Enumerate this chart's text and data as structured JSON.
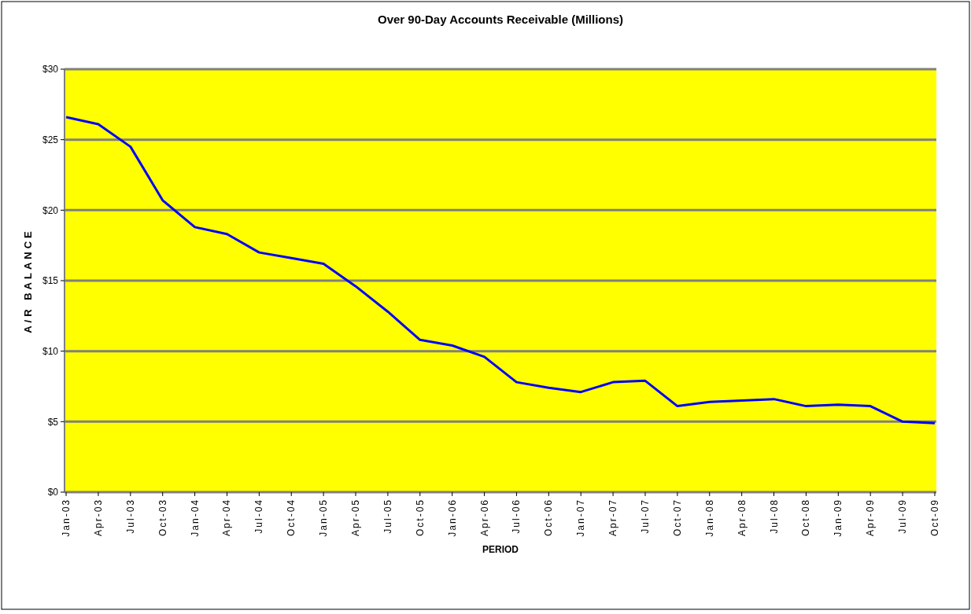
{
  "chart_data": {
    "type": "line",
    "title": "Over 90-Day Accounts Receivable (Millions)",
    "xlabel": "PERIOD",
    "ylabel": "A/R BALANCE",
    "categories": [
      "Jan-03",
      "Apr-03",
      "Jul-03",
      "Oct-03",
      "Jan-04",
      "Apr-04",
      "Jul-04",
      "Oct-04",
      "Jan-05",
      "Apr-05",
      "Jul-05",
      "Oct-05",
      "Jan-06",
      "Apr-06",
      "Jul-06",
      "Oct-06",
      "Jan-07",
      "Apr-07",
      "Jul-07",
      "Oct-07",
      "Jan-08",
      "Apr-08",
      "Jul-08",
      "Oct-08",
      "Jan-09",
      "Apr-09",
      "Jul-09",
      "Oct-09"
    ],
    "series": [
      {
        "color": "#0000ff",
        "values": [
          26.6,
          26.1,
          24.5,
          20.7,
          18.8,
          18.3,
          17.0,
          16.6,
          16.2,
          14.6,
          12.8,
          10.8,
          10.4,
          9.6,
          7.8,
          7.4,
          7.1,
          7.8,
          7.9,
          6.1,
          6.4,
          6.5,
          6.6,
          6.1,
          6.2,
          6.1,
          5.0,
          4.9
        ]
      }
    ],
    "ylim": [
      0,
      30
    ],
    "yticks": [
      {
        "value": 0,
        "label": "$0"
      },
      {
        "value": 5,
        "label": "$5"
      },
      {
        "value": 10,
        "label": "$10"
      },
      {
        "value": 15,
        "label": "$15"
      },
      {
        "value": 20,
        "label": "$20"
      },
      {
        "value": 25,
        "label": "$25"
      },
      {
        "value": 30,
        "label": "$30"
      }
    ],
    "grid": "y",
    "marker": "none",
    "line_style": "solid"
  }
}
